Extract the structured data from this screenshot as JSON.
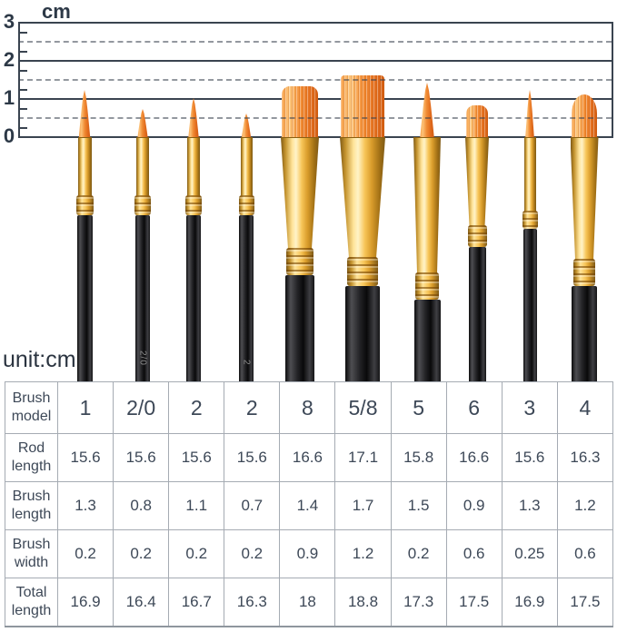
{
  "ruler": {
    "unit_label": "cm",
    "major_labels": [
      "3",
      "2",
      "1",
      "0"
    ],
    "major_values": [
      3,
      2,
      1,
      0
    ],
    "half_values": [
      2.5,
      1.5,
      0.5
    ],
    "quarter_values": [
      2.75,
      2.25,
      1.75,
      1.25,
      0.75,
      0.25
    ],
    "line_color": "#3a4450",
    "text_color": "#2d3947"
  },
  "unit_note": "unit:cm",
  "colors": {
    "bristle_orange": "#ef8a33",
    "ferrule_gold": "#f7c558",
    "handle_black": "#1a1a1c",
    "table_text": "#3d4857",
    "table_border": "#a5abb3"
  },
  "brushes": [
    {
      "model": "1",
      "type": "round",
      "bristle_cm": 1.3,
      "mark": ""
    },
    {
      "model": "2/0",
      "type": "round",
      "bristle_cm": 0.8,
      "mark": "2/0"
    },
    {
      "model": "2",
      "type": "round",
      "bristle_cm": 1.1,
      "mark": ""
    },
    {
      "model": "2",
      "type": "round",
      "bristle_cm": 0.7,
      "mark": "2"
    },
    {
      "model": "8",
      "type": "flat",
      "bristle_cm": 1.4,
      "mark": ""
    },
    {
      "model": "5/8",
      "type": "wash",
      "bristle_cm": 1.7,
      "mark": ""
    },
    {
      "model": "5",
      "type": "round",
      "bristle_cm": 1.5,
      "mark": ""
    },
    {
      "model": "6",
      "type": "flat",
      "bristle_cm": 0.9,
      "mark": ""
    },
    {
      "model": "3",
      "type": "round",
      "bristle_cm": 1.3,
      "mark": ""
    },
    {
      "model": "4",
      "type": "filbert",
      "bristle_cm": 1.2,
      "mark": ""
    }
  ],
  "table": {
    "rows": [
      {
        "label": "Brush model",
        "values": [
          "1",
          "2/0",
          "2",
          "2",
          "8",
          "5/8",
          "5",
          "6",
          "3",
          "4"
        ]
      },
      {
        "label": "Rod length",
        "values": [
          "15.6",
          "15.6",
          "15.6",
          "15.6",
          "16.6",
          "17.1",
          "15.8",
          "16.6",
          "15.6",
          "16.3"
        ]
      },
      {
        "label": "Brush length",
        "values": [
          "1.3",
          "0.8",
          "1.1",
          "0.7",
          "1.4",
          "1.7",
          "1.5",
          "0.9",
          "1.3",
          "1.2"
        ]
      },
      {
        "label": "Brush width",
        "values": [
          "0.2",
          "0.2",
          "0.2",
          "0.2",
          "0.9",
          "1.2",
          "0.2",
          "0.6",
          "0.25",
          "0.6"
        ]
      },
      {
        "label": "Total length",
        "values": [
          "16.9",
          "16.4",
          "16.7",
          "16.3",
          "18",
          "18.8",
          "17.3",
          "17.5",
          "16.9",
          "17.5"
        ]
      }
    ]
  }
}
